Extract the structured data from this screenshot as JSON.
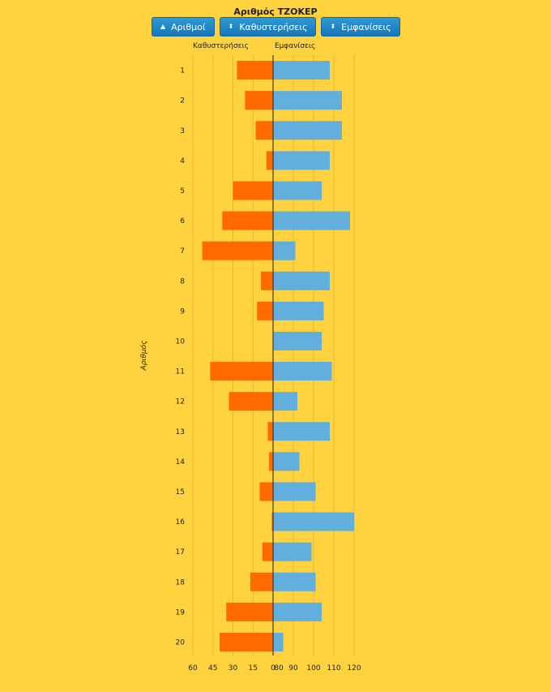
{
  "title": "Αριθμός ΤΖΟΚΕΡ",
  "buttons": [
    {
      "label": "Αριθμοί",
      "icon": "sort-up-icon"
    },
    {
      "label": "Καθυστερήσεις",
      "icon": "sort-icon"
    },
    {
      "label": "Εμφανίσεις",
      "icon": "sort-icon"
    }
  ],
  "colors": {
    "background": "#ffd23f",
    "delays": "#ff6a00",
    "appearances": "#62aedc",
    "button": "#1a82c4"
  },
  "chart_data": {
    "type": "bar",
    "orientation": "horizontal-diverging",
    "ylabel": "Αριθμός",
    "categories": [
      "1",
      "2",
      "3",
      "4",
      "5",
      "6",
      "7",
      "8",
      "9",
      "10",
      "11",
      "12",
      "13",
      "14",
      "15",
      "16",
      "17",
      "18",
      "19",
      "20"
    ],
    "series": [
      {
        "name": "Καθυστερήσεις",
        "side": "left",
        "values": [
          27,
          21,
          13,
          5,
          30,
          38,
          53,
          9,
          12,
          0,
          47,
          33,
          4,
          3,
          10,
          1,
          8,
          17,
          35,
          40
        ],
        "xlim": [
          0,
          60
        ],
        "ticks": [
          "60",
          "45",
          "30",
          "15",
          "0"
        ]
      },
      {
        "name": "Εμφανίσεις",
        "side": "right",
        "values": [
          108,
          114,
          114,
          108,
          104,
          118,
          91,
          108,
          105,
          104,
          109,
          92,
          108,
          93,
          101,
          120,
          99,
          101,
          104,
          85
        ],
        "xlim": [
          80,
          120
        ],
        "ticks": [
          "80",
          "90",
          "100",
          "110",
          "120"
        ]
      }
    ],
    "grid": true
  }
}
